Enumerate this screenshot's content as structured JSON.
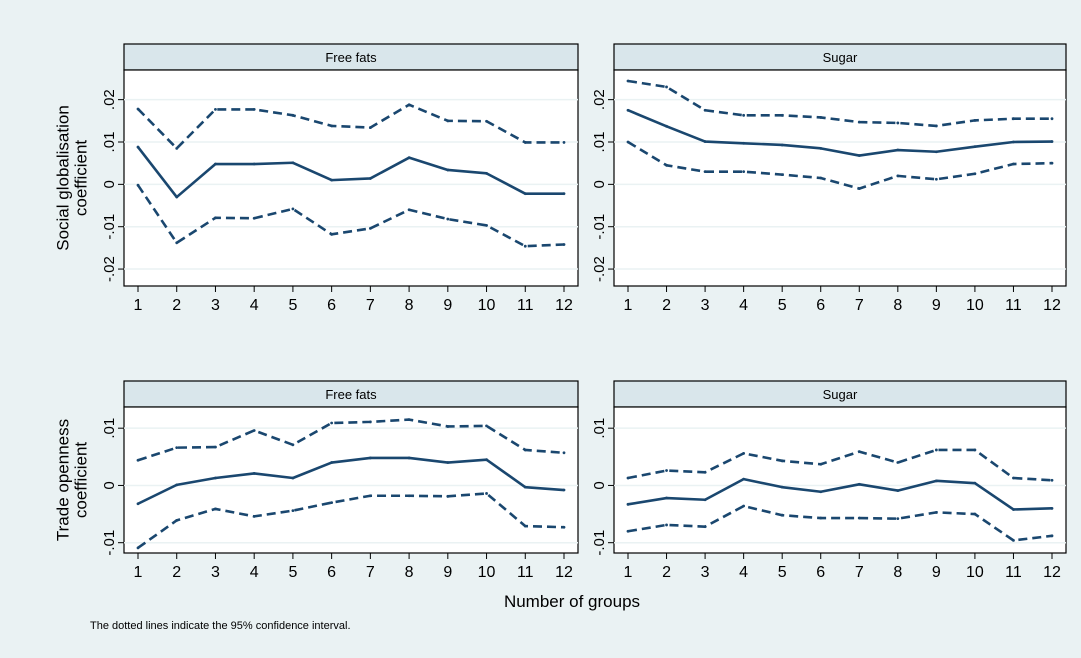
{
  "figure": {
    "xlabel": "Number of groups",
    "note": "The dotted lines indicate the 95% confidence interval."
  },
  "colors": {
    "background": "#eaf2f3",
    "plot_bg": "#ffffff",
    "header_bg": "#d9e6eb",
    "line": "#1a476f",
    "grid": "#eaf2f3",
    "frame": "#000000"
  },
  "chart_data": [
    {
      "type": "line",
      "title": "Free fats",
      "ylabel": "Social globalisation coefficient",
      "x": [
        1,
        2,
        3,
        4,
        5,
        6,
        7,
        8,
        9,
        10,
        11,
        12
      ],
      "ylim": [
        -0.024,
        0.027
      ],
      "yticks": [
        0.02,
        0.01,
        0,
        -0.01,
        -0.02
      ],
      "ytick_labels": [
        ".02",
        ".01",
        "0",
        "-.01",
        "-.02"
      ],
      "grid": true,
      "series": [
        {
          "role": "coefficient",
          "style": "solid",
          "values": [
            0.0088,
            -0.003,
            0.0048,
            0.0048,
            0.0051,
            0.001,
            0.0014,
            0.0063,
            0.0034,
            0.0026,
            -0.0022,
            -0.0022
          ]
        },
        {
          "role": "upper",
          "style": "dashed",
          "values": [
            0.0178,
            0.0085,
            0.0177,
            0.0177,
            0.0163,
            0.0138,
            0.0134,
            0.0188,
            0.015,
            0.0149,
            0.0099,
            0.0099
          ]
        },
        {
          "role": "lower",
          "style": "dashed",
          "values": [
            -0.0002,
            -0.0138,
            -0.0079,
            -0.008,
            -0.0058,
            -0.0118,
            -0.0104,
            -0.006,
            -0.0082,
            -0.0097,
            -0.0146,
            -0.0142
          ]
        }
      ]
    },
    {
      "type": "line",
      "title": "Sugar",
      "ylabel": "",
      "x": [
        1,
        2,
        3,
        4,
        5,
        6,
        7,
        8,
        9,
        10,
        11,
        12
      ],
      "ylim": [
        -0.024,
        0.027
      ],
      "yticks": [
        0.02,
        0.01,
        0,
        -0.01,
        -0.02
      ],
      "ytick_labels": [
        ".02",
        ".01",
        "0",
        "-.01",
        "-.02"
      ],
      "grid": true,
      "series": [
        {
          "role": "coefficient",
          "style": "solid",
          "values": [
            0.0175,
            0.0137,
            0.0101,
            0.0097,
            0.0093,
            0.0085,
            0.0068,
            0.0081,
            0.0077,
            0.0089,
            0.01,
            0.0101
          ]
        },
        {
          "role": "upper",
          "style": "dashed",
          "values": [
            0.0244,
            0.023,
            0.0175,
            0.0163,
            0.0163,
            0.0158,
            0.0147,
            0.0145,
            0.0138,
            0.0151,
            0.0155,
            0.0155
          ]
        },
        {
          "role": "lower",
          "style": "dashed",
          "values": [
            0.01,
            0.0045,
            0.003,
            0.003,
            0.0023,
            0.0015,
            -0.001,
            0.002,
            0.0012,
            0.0025,
            0.0048,
            0.005
          ]
        }
      ]
    },
    {
      "type": "line",
      "title": "Free fats",
      "ylabel": "Trade openness coefficient",
      "x": [
        1,
        2,
        3,
        4,
        5,
        6,
        7,
        8,
        9,
        10,
        11,
        12
      ],
      "ylim": [
        -0.0118,
        0.0137
      ],
      "yticks": [
        0.01,
        0,
        -0.01
      ],
      "ytick_labels": [
        ".01",
        "0",
        "-.01"
      ],
      "grid": true,
      "series": [
        {
          "role": "coefficient",
          "style": "solid",
          "values": [
            -0.0032,
            0.0001,
            0.0013,
            0.0021,
            0.0013,
            0.004,
            0.0048,
            0.0048,
            0.004,
            0.0045,
            -0.0003,
            -0.0008
          ]
        },
        {
          "role": "upper",
          "style": "dashed",
          "values": [
            0.0044,
            0.0066,
            0.0067,
            0.0096,
            0.0071,
            0.0109,
            0.0111,
            0.0115,
            0.0103,
            0.0104,
            0.0062,
            0.0057
          ]
        },
        {
          "role": "lower",
          "style": "dashed",
          "values": [
            -0.0109,
            -0.0061,
            -0.0041,
            -0.0054,
            -0.0044,
            -0.003,
            -0.0018,
            -0.0018,
            -0.0019,
            -0.0014,
            -0.0071,
            -0.0073
          ]
        }
      ]
    },
    {
      "type": "line",
      "title": "Sugar",
      "ylabel": "",
      "x": [
        1,
        2,
        3,
        4,
        5,
        6,
        7,
        8,
        9,
        10,
        11,
        12
      ],
      "ylim": [
        -0.0118,
        0.0137
      ],
      "yticks": [
        0.01,
        0,
        -0.01
      ],
      "ytick_labels": [
        ".01",
        "0",
        "-.01"
      ],
      "grid": true,
      "series": [
        {
          "role": "coefficient",
          "style": "solid",
          "values": [
            -0.0033,
            -0.0022,
            -0.0025,
            0.0011,
            -0.0003,
            -0.0011,
            0.0002,
            -0.0009,
            0.0008,
            0.0004,
            -0.0042,
            -0.004
          ]
        },
        {
          "role": "upper",
          "style": "dashed",
          "values": [
            0.0013,
            0.0026,
            0.0023,
            0.0056,
            0.0043,
            0.0037,
            0.0059,
            0.004,
            0.0062,
            0.0062,
            0.0013,
            0.0009
          ]
        },
        {
          "role": "lower",
          "style": "dashed",
          "values": [
            -0.008,
            -0.0069,
            -0.0072,
            -0.0036,
            -0.0052,
            -0.0057,
            -0.0057,
            -0.0058,
            -0.0047,
            -0.005,
            -0.0096,
            -0.0088
          ]
        }
      ]
    }
  ]
}
